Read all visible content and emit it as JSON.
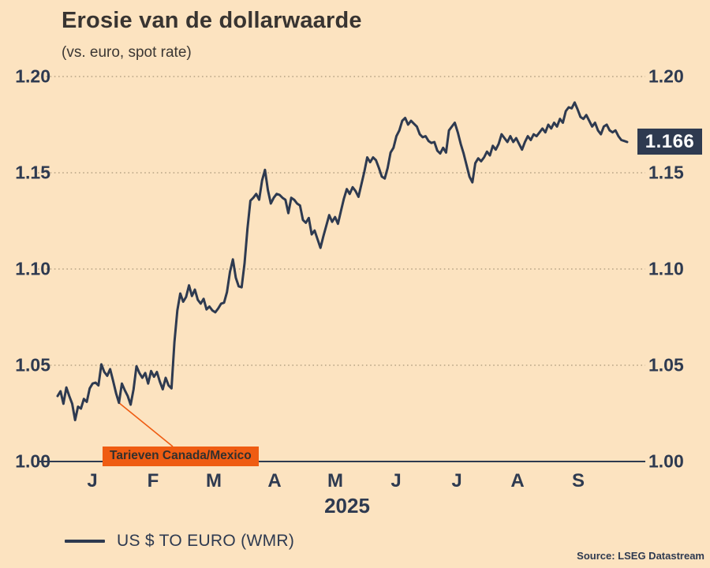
{
  "header": {
    "title": "Erosie van de dollarwaarde",
    "subtitle": "(vs. euro, spot rate)"
  },
  "colors": {
    "background": "#fce3c0",
    "line": "#2e3a50",
    "grid_dots": "#b7a485",
    "axis": "#2e3a50",
    "annotation_orange": "#ef5c12",
    "last_value_bg": "#2e3a50",
    "last_value_text": "#ffffff",
    "text_dark": "#2e3a50"
  },
  "y_axis": {
    "tick_labels": [
      "1.20",
      "1.15",
      "1.10",
      "1.05",
      "1.00"
    ],
    "tick_values": [
      1.2,
      1.15,
      1.1,
      1.05,
      1.0
    ],
    "shown_on_both_sides": true
  },
  "x_axis": {
    "month_labels": [
      "J",
      "F",
      "M",
      "A",
      "M",
      "J",
      "J",
      "A",
      "S"
    ],
    "year_label": "2025"
  },
  "last_value_label": "1.166",
  "annotation": {
    "text": "Tarieven Canada/Mexico",
    "anchor_index": 21
  },
  "legend": {
    "label": "US $ TO EURO (WMR)"
  },
  "source": "Source: LSEG Datastream",
  "chart_data": {
    "type": "line",
    "title": "Erosie van de dollarwaarde",
    "subtitle": "(vs. euro, spot rate)",
    "xlabel": "2025",
    "ylabel": "",
    "ylim": [
      1.0,
      1.2
    ],
    "x_categories_months": [
      "J",
      "F",
      "M",
      "A",
      "M",
      "J",
      "J",
      "A",
      "S"
    ],
    "grid": "dotted-horizontal",
    "legend_position": "bottom-left",
    "annotations": [
      {
        "text": "Tarieven Canada/Mexico",
        "points_to_value": 1.0305
      },
      {
        "text": "1.166",
        "type": "last-value-box"
      }
    ],
    "series": [
      {
        "name": "US $ TO EURO (WMR)",
        "values": [
          1.034,
          1.0365,
          1.03,
          1.0385,
          1.034,
          1.03,
          1.0215,
          1.0285,
          1.0275,
          1.0325,
          1.031,
          1.038,
          1.0405,
          1.041,
          1.0395,
          1.0505,
          1.0465,
          1.0445,
          1.048,
          1.042,
          1.0355,
          1.0305,
          1.0405,
          1.037,
          1.034,
          1.0295,
          1.0375,
          1.0495,
          1.046,
          1.0435,
          1.046,
          1.0405,
          1.047,
          1.044,
          1.0465,
          1.0415,
          1.0375,
          1.0435,
          1.0395,
          1.038,
          1.062,
          1.0785,
          1.0873,
          1.083,
          1.0855,
          1.0915,
          1.086,
          1.0893,
          1.084,
          1.082,
          1.0845,
          1.079,
          1.0805,
          1.0785,
          1.0775,
          1.0795,
          1.082,
          1.0825,
          1.088,
          1.0985,
          1.105,
          1.0955,
          1.091,
          1.0905,
          1.103,
          1.121,
          1.1355,
          1.137,
          1.139,
          1.136,
          1.146,
          1.1515,
          1.141,
          1.134,
          1.137,
          1.139,
          1.1385,
          1.137,
          1.136,
          1.129,
          1.137,
          1.136,
          1.134,
          1.133,
          1.1255,
          1.124,
          1.1265,
          1.118,
          1.12,
          1.1155,
          1.111,
          1.117,
          1.1225,
          1.128,
          1.1245,
          1.127,
          1.1235,
          1.13,
          1.1365,
          1.1415,
          1.139,
          1.1425,
          1.1405,
          1.1375,
          1.144,
          1.1505,
          1.158,
          1.1555,
          1.158,
          1.1565,
          1.1525,
          1.148,
          1.147,
          1.1525,
          1.1605,
          1.163,
          1.169,
          1.172,
          1.177,
          1.1785,
          1.175,
          1.177,
          1.1755,
          1.174,
          1.17,
          1.1685,
          1.169,
          1.1665,
          1.1655,
          1.166,
          1.1615,
          1.16,
          1.163,
          1.1605,
          1.172,
          1.174,
          1.176,
          1.171,
          1.165,
          1.16,
          1.154,
          1.148,
          1.145,
          1.155,
          1.1575,
          1.156,
          1.158,
          1.161,
          1.159,
          1.164,
          1.162,
          1.165,
          1.17,
          1.168,
          1.166,
          1.169,
          1.166,
          1.168,
          1.165,
          1.162,
          1.166,
          1.169,
          1.167,
          1.17,
          1.169,
          1.171,
          1.173,
          1.171,
          1.175,
          1.173,
          1.176,
          1.174,
          1.178,
          1.176,
          1.182,
          1.184,
          1.1835,
          1.1865,
          1.183,
          1.179,
          1.178,
          1.18,
          1.177,
          1.174,
          1.176,
          1.172,
          1.17,
          1.174,
          1.175,
          1.172,
          1.171,
          1.172,
          1.169,
          1.167,
          1.1665,
          1.166
        ]
      }
    ]
  }
}
